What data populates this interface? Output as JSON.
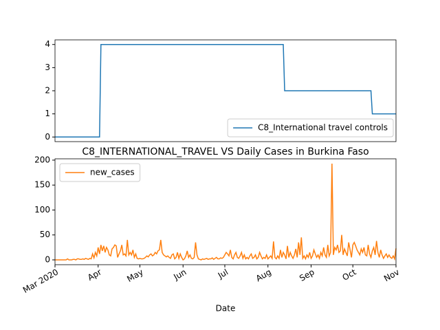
{
  "chart_data": [
    {
      "type": "line",
      "x": [
        0,
        32,
        33,
        164,
        165,
        227,
        228,
        245
      ],
      "series": [
        {
          "name": "C8_International travel controls",
          "color": "#1f77b4",
          "values": [
            0,
            0,
            4,
            4,
            2,
            2,
            1,
            1
          ]
        }
      ],
      "xlim": [
        0,
        245
      ],
      "ylim": [
        -0.2,
        4.2
      ],
      "yticks": [
        0,
        1,
        2,
        3,
        4
      ],
      "legend": "lower right"
    },
    {
      "type": "line",
      "title": "C8_INTERNATIONAL_TRAVEL VS Daily Cases in Burkina Faso",
      "xlabel": "Date",
      "series": [
        {
          "name": "new_cases",
          "color": "#ff7f0e",
          "values": [
            0,
            0,
            0,
            0,
            0,
            0,
            0,
            0,
            0,
            2,
            0,
            0,
            0,
            1,
            1,
            0,
            2,
            2,
            1,
            1,
            2,
            1,
            3,
            2,
            1,
            3,
            2,
            12,
            4,
            15,
            8,
            25,
            12,
            30,
            18,
            28,
            15,
            25,
            20,
            10,
            8,
            22,
            25,
            30,
            28,
            5,
            12,
            18,
            30,
            10,
            12,
            8,
            40,
            10,
            15,
            10,
            20,
            5,
            12,
            3,
            2,
            3,
            2,
            2,
            3,
            5,
            8,
            6,
            10,
            12,
            8,
            10,
            15,
            12,
            18,
            20,
            40,
            15,
            10,
            8,
            6,
            8,
            5,
            3,
            10,
            12,
            2,
            5,
            15,
            3,
            12,
            5,
            0,
            2,
            8,
            18,
            5,
            10,
            3,
            2,
            5,
            35,
            10,
            2,
            1,
            0,
            2,
            1,
            2,
            3,
            1,
            2,
            2,
            4,
            1,
            3,
            5,
            2,
            2,
            4,
            3,
            5,
            10,
            15,
            12,
            8,
            20,
            5,
            2,
            10,
            15,
            5,
            3,
            8,
            15,
            3,
            10,
            2,
            5,
            2,
            8,
            12,
            3,
            5,
            10,
            2,
            5,
            15,
            8,
            2,
            5,
            3,
            10,
            2,
            5,
            8,
            3,
            37,
            5,
            2,
            8,
            3,
            20,
            5,
            15,
            10,
            2,
            28,
            5,
            15,
            8,
            3,
            10,
            22,
            5,
            35,
            10,
            45,
            3,
            8,
            2,
            10,
            5,
            15,
            3,
            8,
            20,
            12,
            5,
            10,
            3,
            15,
            8,
            25,
            10,
            5,
            30,
            8,
            15,
            193,
            10,
            25,
            20,
            30,
            15,
            18,
            50,
            10,
            22,
            15,
            8,
            35,
            20,
            5,
            30,
            35,
            28,
            20,
            15,
            10,
            22,
            15,
            25,
            10,
            8,
            30,
            12,
            5,
            18,
            25,
            10,
            38,
            15,
            5,
            20,
            10,
            3,
            8,
            12,
            5,
            10,
            5,
            3,
            8,
            2,
            23
          ]
        }
      ],
      "xlim": [
        0,
        245
      ],
      "xticks": [
        {
          "value": 0,
          "label": "Mar 2020"
        },
        {
          "value": 31,
          "label": "Apr"
        },
        {
          "value": 61,
          "label": "May"
        },
        {
          "value": 92,
          "label": "Jun"
        },
        {
          "value": 122,
          "label": "Jul"
        },
        {
          "value": 153,
          "label": "Aug"
        },
        {
          "value": 184,
          "label": "Sep"
        },
        {
          "value": 214,
          "label": "Oct"
        },
        {
          "value": 245,
          "label": "Nov"
        }
      ],
      "ylim": [
        -9.65,
        202.65
      ],
      "yticks": [
        0,
        50,
        100,
        150,
        200
      ],
      "legend": "upper left"
    }
  ]
}
